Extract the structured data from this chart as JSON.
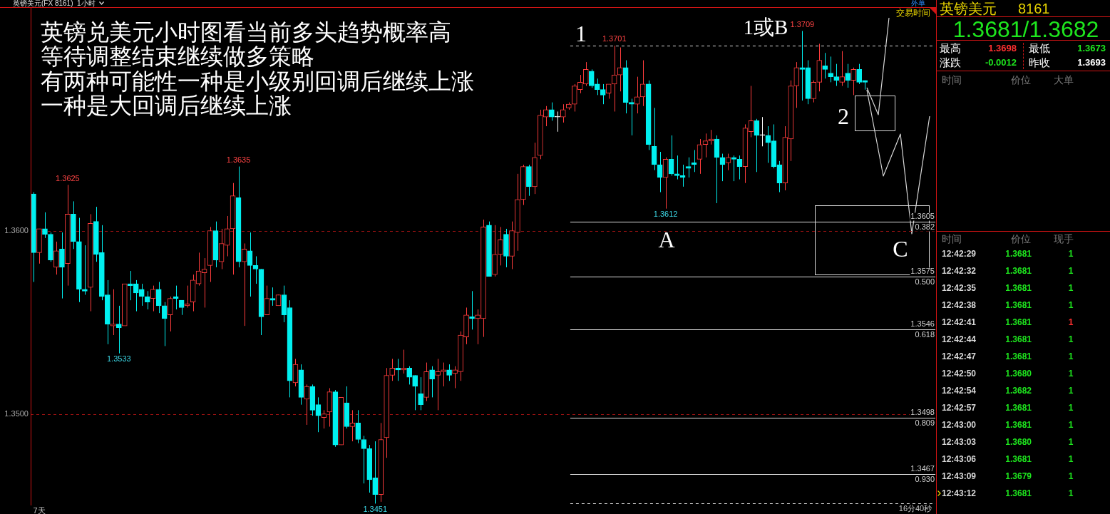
{
  "chart_data": {
    "type": "candlestick",
    "title": "英镑美元(FX 8161)  1小时",
    "annotations": [
      "英镑兑美元小时图看当前多头趋势概率高",
      "等待调整结束继续做多策略",
      "有两种可能性一种是小级别回调后继续上涨",
      "一种是大回调后继续上涨",
      "1",
      "1或B",
      "2",
      "A",
      "C",
      "交易时间",
      "16分40秒",
      "外单",
      "英镑美元",
      "8161",
      "1.3681/1.3682",
      "最高",
      "1.3698",
      "最低",
      "1.3673",
      "涨跌",
      "-0.0012",
      "昨收",
      "1.3693",
      "时间",
      "价位",
      "大单",
      "时间",
      "价位",
      "现手",
      "12:42:29",
      "1.3681",
      "1",
      "12:42:32",
      "1.3681",
      "1",
      "12:42:35",
      "1.3681",
      "1",
      "12:42:38",
      "1.3681",
      "1",
      "12:42:41",
      "1.3681",
      "1",
      "12:42:44",
      "1.3681",
      "1",
      "12:42:47",
      "1.3681",
      "1",
      "12:42:50",
      "1.3680",
      "1",
      "12:42:54",
      "1.3682",
      "1",
      "12:42:57",
      "1.3681",
      "1",
      "12:43:00",
      "1.3681",
      "1",
      "12:43:03",
      "1.3680",
      "1",
      "12:43:06",
      "1.3681",
      "1",
      "12:43:09",
      "1.3679",
      "1",
      "12:43:12",
      "1.3681",
      "1",
      {
        "text": "0.382",
        "y": 1.3605
      },
      {
        "text": "0.500",
        "y": 1.3575
      },
      {
        "text": "0.618",
        "y": 1.3546
      },
      {
        "text": "0.809",
        "y": 1.3498
      },
      {
        "text": "0.930",
        "y": 1.3467
      }
    ],
    "categories": [
      null,
      "7天",
      null,
      null,
      null,
      null,
      null,
      null,
      null,
      null,
      null,
      null,
      null,
      null,
      null,
      null,
      null,
      null,
      null,
      null,
      null,
      null,
      null,
      null,
      null,
      null,
      null,
      null,
      null,
      null,
      null,
      null,
      null,
      null,
      null,
      null,
      null,
      null,
      null,
      null,
      null,
      null,
      null,
      null,
      null,
      null,
      null,
      null,
      null,
      null,
      null,
      null,
      null,
      null,
      null,
      null,
      null,
      null,
      null,
      null,
      null,
      null,
      null,
      null,
      null,
      null,
      null,
      null,
      null,
      null,
      null,
      null,
      null,
      null,
      null,
      null,
      null,
      null,
      null,
      null,
      null,
      null,
      null,
      null,
      null,
      null,
      null,
      null,
      null,
      null,
      null,
      null,
      null,
      null,
      null,
      null,
      null,
      null,
      null,
      null,
      null,
      null,
      null,
      null,
      null,
      null,
      null,
      null,
      null,
      null,
      null,
      null,
      null,
      null,
      null,
      null,
      null,
      null,
      null,
      null,
      null,
      null,
      null,
      null,
      null,
      null,
      null,
      null,
      null,
      null,
      null,
      null,
      null,
      null,
      null,
      null,
      null,
      null,
      null,
      null,
      null,
      null,
      null,
      null,
      null,
      null,
      null,
      null,
      null,
      null,
      null,
      null,
      null,
      null,
      null,
      null,
      null,
      null,
      null
    ],
    "ohlc": [
      [
        1.362,
        1.3621,
        1.3572,
        1.3588
      ],
      [
        1.3588,
        1.3601,
        1.3582,
        1.3601
      ],
      [
        1.3601,
        1.361,
        1.3596,
        1.3598
      ],
      [
        1.3598,
        1.3599,
        1.3583,
        1.3584
      ],
      [
        1.358,
        1.3594,
        1.3576,
        1.3589
      ],
      [
        1.359,
        1.3599,
        1.3563,
        1.358
      ],
      [
        1.3582,
        1.3625,
        1.357,
        1.3609
      ],
      [
        1.3609,
        1.3616,
        1.359,
        1.3594
      ],
      [
        1.3594,
        1.3607,
        1.3561,
        1.3568
      ],
      [
        1.3568,
        1.3592,
        1.3565,
        1.3567
      ],
      [
        1.3569,
        1.3609,
        1.3556,
        1.3604
      ],
      [
        1.3605,
        1.3613,
        1.3583,
        1.3587
      ],
      [
        1.3588,
        1.3603,
        1.3562,
        1.3564
      ],
      [
        1.3565,
        1.3573,
        1.3538,
        1.3549
      ],
      [
        1.3548,
        1.3568,
        1.3543,
        1.3549
      ],
      [
        1.3549,
        1.3559,
        1.3533,
        1.3547
      ],
      [
        1.3548,
        1.3571,
        1.3548,
        1.3571
      ],
      [
        1.3571,
        1.3578,
        1.3562,
        1.357
      ],
      [
        1.3571,
        1.3573,
        1.3556,
        1.3566
      ],
      [
        1.3568,
        1.3571,
        1.3559,
        1.3564
      ],
      [
        1.3564,
        1.3567,
        1.3557,
        1.3561
      ],
      [
        1.3563,
        1.357,
        1.3556,
        1.3568
      ],
      [
        1.3568,
        1.3572,
        1.3555,
        1.3559
      ],
      [
        1.3559,
        1.3561,
        1.3537,
        1.3552
      ],
      [
        1.3554,
        1.3564,
        1.3545,
        1.3563
      ],
      [
        1.3564,
        1.357,
        1.3557,
        1.3563
      ],
      [
        1.3562,
        1.3562,
        1.3554,
        1.3558
      ],
      [
        1.3559,
        1.357,
        1.3558,
        1.356
      ],
      [
        1.3561,
        1.3576,
        1.3556,
        1.3573
      ],
      [
        1.3571,
        1.3588,
        1.357,
        1.3578
      ],
      [
        1.3577,
        1.3585,
        1.3558,
        1.3579
      ],
      [
        1.3581,
        1.3602,
        1.3572,
        1.36
      ],
      [
        1.36,
        1.3605,
        1.358,
        1.3584
      ],
      [
        1.3583,
        1.3601,
        1.3579,
        1.3593
      ],
      [
        1.3592,
        1.3608,
        1.3586,
        1.3601
      ],
      [
        1.3601,
        1.3626,
        1.3576,
        1.3619
      ],
      [
        1.3618,
        1.3635,
        1.358,
        1.3583
      ],
      [
        1.3583,
        1.3593,
        1.3548,
        1.359
      ],
      [
        1.3589,
        1.3599,
        1.3564,
        1.3581
      ],
      [
        1.3581,
        1.3586,
        1.3571,
        1.3579
      ],
      [
        1.3579,
        1.3579,
        1.3543,
        1.3553
      ],
      [
        1.3554,
        1.357,
        1.3554,
        1.3563
      ],
      [
        1.3563,
        1.3569,
        1.3559,
        1.3562
      ],
      [
        1.3559,
        1.3565,
        1.3559,
        1.3565
      ],
      [
        1.3565,
        1.357,
        1.355,
        1.3554
      ],
      [
        1.3558,
        1.3562,
        1.3509,
        1.3518
      ],
      [
        1.3517,
        1.353,
        1.3515,
        1.3527
      ],
      [
        1.3524,
        1.3527,
        1.3505,
        1.3509
      ],
      [
        1.3508,
        1.3516,
        1.3494,
        1.3515
      ],
      [
        1.3515,
        1.3516,
        1.3499,
        1.3502
      ],
      [
        1.3505,
        1.3509,
        1.349,
        1.3499
      ],
      [
        1.3498,
        1.3502,
        1.3492,
        1.35
      ],
      [
        1.3501,
        1.3514,
        1.3493,
        1.3512
      ],
      [
        1.3512,
        1.3513,
        1.3482,
        1.3483
      ],
      [
        1.3483,
        1.3509,
        1.3483,
        1.3509
      ],
      [
        1.3506,
        1.3515,
        1.3492,
        1.3493
      ],
      [
        1.3493,
        1.3502,
        1.3485,
        1.3495
      ],
      [
        1.3495,
        1.3502,
        1.3484,
        1.3486
      ],
      [
        1.3486,
        1.3488,
        1.3462,
        1.3481
      ],
      [
        1.3481,
        1.3483,
        1.3457,
        1.3464
      ],
      [
        1.3465,
        1.3485,
        1.3451,
        1.3456
      ],
      [
        1.3456,
        1.3495,
        1.3452,
        1.3486
      ],
      [
        1.3487,
        1.3525,
        1.3476,
        1.3521
      ],
      [
        1.3521,
        1.353,
        1.3518,
        1.3525
      ],
      [
        1.3525,
        1.353,
        1.3518,
        1.3524
      ],
      [
        1.3524,
        1.3535,
        1.3522,
        1.3525
      ],
      [
        1.3525,
        1.3526,
        1.3516,
        1.352
      ],
      [
        1.3521,
        1.3521,
        1.3502,
        1.3515
      ],
      [
        1.3511,
        1.352,
        1.3502,
        1.3505
      ],
      [
        1.3509,
        1.3528,
        1.3507,
        1.3523
      ],
      [
        1.3524,
        1.3526,
        1.3509,
        1.3519
      ],
      [
        1.3521,
        1.353,
        1.3502,
        1.3523
      ],
      [
        1.3523,
        1.3528,
        1.3515,
        1.3524
      ],
      [
        1.3524,
        1.3527,
        1.3518,
        1.3521
      ],
      [
        1.3522,
        1.3526,
        1.3514,
        1.3524
      ],
      [
        1.3523,
        1.3545,
        1.3518,
        1.3543
      ],
      [
        1.3542,
        1.3558,
        1.3538,
        1.3554
      ],
      [
        1.3553,
        1.3567,
        1.3546,
        1.3552
      ],
      [
        1.3552,
        1.3557,
        1.3538,
        1.3554
      ],
      [
        1.3552,
        1.3606,
        1.3542,
        1.3602
      ],
      [
        1.3603,
        1.3605,
        1.3575,
        1.3575
      ],
      [
        1.3576,
        1.3603,
        1.3575,
        1.3587
      ],
      [
        1.3587,
        1.3602,
        1.3581,
        1.3595
      ],
      [
        1.3598,
        1.3601,
        1.358,
        1.3586
      ],
      [
        1.3586,
        1.3605,
        1.3579,
        1.36
      ],
      [
        1.3599,
        1.3631,
        1.3589,
        1.3617
      ],
      [
        1.3617,
        1.3636,
        1.3614,
        1.3635
      ],
      [
        1.3635,
        1.3636,
        1.3619,
        1.3624
      ],
      [
        1.3624,
        1.3648,
        1.362,
        1.364
      ],
      [
        1.3641,
        1.3666,
        1.3639,
        1.3663
      ],
      [
        1.3662,
        1.3668,
        1.3657,
        1.3666
      ],
      [
        1.3666,
        1.367,
        1.366,
        1.3662
      ],
      [
        1.3662,
        1.3665,
        1.3654,
        1.3662
      ],
      [
        1.3662,
        1.3669,
        1.3659,
        1.3666
      ],
      [
        1.3667,
        1.367,
        1.3666,
        1.3669
      ],
      [
        1.3669,
        1.368,
        1.3665,
        1.3679
      ],
      [
        1.3677,
        1.3685,
        1.3675,
        1.3681
      ],
      [
        1.368,
        1.3692,
        1.3679,
        1.3688
      ],
      [
        1.3687,
        1.3688,
        1.3678,
        1.3679
      ],
      [
        1.368,
        1.3683,
        1.3674,
        1.3677
      ],
      [
        1.3677,
        1.368,
        1.3669,
        1.3674
      ],
      [
        1.3675,
        1.368,
        1.3672,
        1.368
      ],
      [
        1.368,
        1.3701,
        1.3665,
        1.3685
      ],
      [
        1.3685,
        1.37,
        1.3676,
        1.3689
      ],
      [
        1.3689,
        1.3693,
        1.3664,
        1.367
      ],
      [
        1.367,
        1.3672,
        1.3652,
        1.3669
      ],
      [
        1.3669,
        1.3684,
        1.3664,
        1.3673
      ],
      [
        1.3673,
        1.3693,
        1.3668,
        1.368
      ],
      [
        1.368,
        1.3682,
        1.3644,
        1.3647
      ],
      [
        1.3646,
        1.3667,
        1.3633,
        1.3636
      ],
      [
        1.3636,
        1.3643,
        1.3621,
        1.3629
      ],
      [
        1.3629,
        1.364,
        1.3612,
        1.3639
      ],
      [
        1.3639,
        1.3652,
        1.363,
        1.3631
      ],
      [
        1.3631,
        1.3641,
        1.3628,
        1.363
      ],
      [
        1.363,
        1.3636,
        1.3624,
        1.3629
      ],
      [
        1.3635,
        1.364,
        1.3629,
        1.3634
      ],
      [
        1.3637,
        1.3644,
        1.3632,
        1.3636
      ],
      [
        1.3639,
        1.365,
        1.3631,
        1.3647
      ],
      [
        1.3647,
        1.3653,
        1.364,
        1.3649
      ],
      [
        1.3649,
        1.3655,
        1.3647,
        1.365
      ],
      [
        1.365,
        1.3652,
        1.3615,
        1.364
      ],
      [
        1.364,
        1.3642,
        1.3627,
        1.3636
      ],
      [
        1.3637,
        1.3642,
        1.3633,
        1.364
      ],
      [
        1.364,
        1.3641,
        1.3627,
        1.3639
      ],
      [
        1.3639,
        1.3641,
        1.3628,
        1.3635
      ],
      [
        1.3635,
        1.3658,
        1.3626,
        1.3656
      ],
      [
        1.3654,
        1.3679,
        1.3651,
        1.366
      ],
      [
        1.366,
        1.3661,
        1.3632,
        1.3652
      ],
      [
        1.3652,
        1.3662,
        1.3646,
        1.3652
      ],
      [
        1.3652,
        1.3657,
        1.3637,
        1.3648
      ],
      [
        1.3649,
        1.3658,
        1.3634,
        1.3635
      ],
      [
        1.3636,
        1.3638,
        1.3621,
        1.3626
      ],
      [
        1.3626,
        1.3657,
        1.3622,
        1.3651
      ],
      [
        1.365,
        1.3682,
        1.3638,
        1.3679
      ],
      [
        1.3679,
        1.3692,
        1.3667,
        1.3689
      ],
      [
        1.3689,
        1.3709,
        1.3671,
        1.3688
      ],
      [
        1.3689,
        1.3693,
        1.3669,
        1.3672
      ],
      [
        1.3672,
        1.3682,
        1.367,
        1.3681
      ],
      [
        1.3681,
        1.3702,
        1.3676,
        1.3693
      ],
      [
        1.369,
        1.3697,
        1.3683,
        1.3688
      ],
      [
        1.3686,
        1.3695,
        1.3681,
        1.3684
      ],
      [
        1.3684,
        1.3691,
        1.3679,
        1.3682
      ],
      [
        1.3681,
        1.3698,
        1.3679,
        1.3684
      ],
      [
        1.3686,
        1.3691,
        1.3678,
        1.3682
      ],
      [
        1.3682,
        1.3689,
        1.3674,
        1.3688
      ],
      [
        1.3688,
        1.3691,
        1.368,
        1.3681
      ],
      [
        1.3682,
        1.3682,
        1.3677,
        1.3681
      ],
      null,
      null,
      null,
      null,
      null,
      null,
      null,
      null,
      null,
      null,
      null,
      null
    ],
    "colors": [
      "#00f0f0",
      "#ff3c3c",
      "#00f0f0",
      "#00f0f0",
      "#ff3c3c",
      "#00f0f0",
      "#ff3c3c",
      "#00f0f0",
      "#00f0f0",
      "#00f0f0",
      "#ff3c3c",
      "#00f0f0",
      "#00f0f0",
      "#00f0f0",
      "#ff3c3c",
      "#00f0f0",
      "#ff3c3c",
      "#00f0f0",
      "#00f0f0",
      "#00f0f0",
      "#00f0f0",
      "#ff3c3c",
      "#00f0f0",
      "#00f0f0",
      "#ff3c3c",
      "#00f0f0",
      "#00f0f0",
      "#ff3c3c",
      "#ff3c3c",
      "#ff3c3c",
      "#ff3c3c",
      "#ff3c3c",
      "#00f0f0",
      "#ff3c3c",
      "#ff3c3c",
      "#ff3c3c",
      "#00f0f0",
      "#ff3c3c",
      "#00f0f0",
      "#00f0f0",
      "#00f0f0",
      "#ff3c3c",
      "#00f0f0",
      "#ff3c3c",
      "#00f0f0",
      "#00f0f0",
      "#ff3c3c",
      "#00f0f0",
      "#ff3c3c",
      "#00f0f0",
      "#00f0f0",
      "#ff3c3c",
      "#ff3c3c",
      "#00f0f0",
      "#ff3c3c",
      "#00f0f0",
      "#ff3c3c",
      "#00f0f0",
      "#00f0f0",
      "#00f0f0",
      "#00f0f0",
      "#ff3c3c",
      "#ff3c3c",
      "#ff3c3c",
      "#00f0f0",
      "#ff3c3c",
      "#00f0f0",
      "#00f0f0",
      "#00f0f0",
      "#ff3c3c",
      "#00f0f0",
      "#ff3c3c",
      "#ff3c3c",
      "#00f0f0",
      "#ff3c3c",
      "#ff3c3c",
      "#ff3c3c",
      "#00f0f0",
      "#ff3c3c",
      "#ff3c3c",
      "#00f0f0",
      "#ff3c3c",
      "#ff3c3c",
      "#00f0f0",
      "#ff3c3c",
      "#ff3c3c",
      "#ff3c3c",
      "#00f0f0",
      "#ff3c3c",
      "#ff3c3c",
      "#ff3c3c",
      "#00f0f0",
      "#ffffff",
      "#ff3c3c",
      "#ff3c3c",
      "#ff3c3c",
      "#ff3c3c",
      "#ff3c3c",
      "#00f0f0",
      "#00f0f0",
      "#00f0f0",
      "#ff3c3c",
      "#ff3c3c",
      "#ff3c3c",
      "#00f0f0",
      "#00f0f0",
      "#ff3c3c",
      "#ff3c3c",
      "#00f0f0",
      "#00f0f0",
      "#00f0f0",
      "#ff3c3c",
      "#00f0f0",
      "#00f0f0",
      "#00f0f0",
      "#00f0f0",
      "#00f0f0",
      "#ff3c3c",
      "#ff3c3c",
      "#ff3c3c",
      "#00f0f0",
      "#00f0f0",
      "#ff3c3c",
      "#00f0f0",
      "#00f0f0",
      "#ff3c3c",
      "#ff3c3c",
      "#00f0f0",
      "#ffffff",
      "#00f0f0",
      "#00f0f0",
      "#00f0f0",
      "#ff3c3c",
      "#ff3c3c",
      "#ff3c3c",
      "#00f0f0",
      "#00f0f0",
      "#ff3c3c",
      "#ff3c3c",
      "#00f0f0",
      "#00f0f0",
      "#00f0f0",
      "#ff3c3c",
      "#00f0f0",
      "#ff3c3c",
      "#00f0f0",
      "#00f0f0",
      null,
      null,
      null,
      null,
      null,
      null,
      null,
      null,
      null,
      null,
      null,
      null
    ],
    "value_labels": [
      null,
      null,
      null,
      null,
      null,
      null,
      "1.3625",
      null,
      null,
      null,
      null,
      null,
      null,
      null,
      null,
      "1.3533",
      null,
      null,
      null,
      null,
      null,
      null,
      null,
      null,
      null,
      null,
      null,
      null,
      null,
      null,
      null,
      null,
      null,
      null,
      null,
      null,
      "1.3635",
      null,
      null,
      null,
      null,
      null,
      null,
      null,
      null,
      null,
      null,
      null,
      null,
      null,
      null,
      null,
      null,
      null,
      null,
      null,
      null,
      null,
      null,
      null,
      "1.3451",
      null,
      null,
      null,
      null,
      null,
      null,
      null,
      null,
      null,
      null,
      null,
      null,
      null,
      null,
      null,
      null,
      null,
      null,
      null,
      null,
      null,
      null,
      null,
      null,
      null,
      null,
      null,
      null,
      null,
      null,
      null,
      null,
      null,
      null,
      null,
      null,
      null,
      null,
      null,
      null,
      null,
      "1.3701",
      null,
      null,
      null,
      null,
      null,
      null,
      null,
      null,
      "1.3612",
      null,
      null,
      null,
      null,
      null,
      null,
      null,
      null,
      null,
      null,
      null,
      null,
      null,
      null,
      null,
      null,
      null,
      null,
      null,
      null,
      null,
      null,
      null,
      "1.3709",
      null,
      null,
      null,
      null,
      null,
      null,
      null,
      null,
      null,
      null,
      null,
      null,
      null,
      null,
      null,
      null,
      null,
      null,
      null,
      null,
      null,
      null,
      null
    ],
    "ylim": [
      1.345,
      1.3722
    ],
    "yticks": [
      {
        "value": 1.36,
        "label": "1.3600"
      },
      {
        "value": 1.35,
        "label": "1.3500"
      }
    ],
    "grid": "y",
    "ref_lines": [
      {
        "axis": "y",
        "value": 1.3701,
        "line_style": "dashed"
      },
      {
        "axis": "y",
        "value": 1.3605,
        "label": "1.3605"
      },
      {
        "axis": "y",
        "value": 1.3575,
        "label": "1.3575"
      },
      {
        "axis": "y",
        "value": 1.3546,
        "label": "1.3546"
      },
      {
        "axis": "y",
        "value": 1.3498,
        "label": "1.3498"
      },
      {
        "axis": "y",
        "value": 1.3467,
        "label": "1.3467"
      },
      {
        "axis": "y",
        "value": 1.3451,
        "line_style": "dashed"
      }
    ]
  }
}
